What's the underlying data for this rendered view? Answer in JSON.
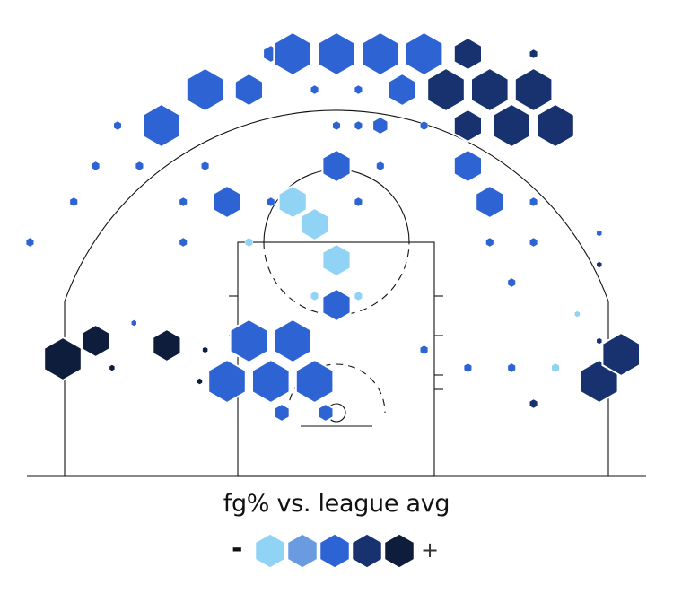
{
  "chart_data": {
    "type": "hexbin",
    "title": "",
    "legend": {
      "title": "fg% vs. league avg",
      "low_label": "-",
      "high_label": "+",
      "colors": [
        "#91d3f5",
        "#6a9be0",
        "#2e63d4",
        "#17326f",
        "#0e1d3c"
      ]
    },
    "color_levels": [
      "#91d3f5",
      "#6a9be0",
      "#2e63d4",
      "#17326f",
      "#0e1d3c"
    ],
    "size_scale_note": "hex size = shot volume (1 to 5)",
    "court_units": "feet",
    "bins": [
      {
        "x": -25.0,
        "y": 6.0,
        "size": 5,
        "level": 4
      },
      {
        "x": -22.0,
        "y": 8.0,
        "size": 4,
        "level": 4
      },
      {
        "x": -20.5,
        "y": 5.0,
        "size": 1,
        "level": 4
      },
      {
        "x": -18.5,
        "y": 10.0,
        "size": 1,
        "level": 2
      },
      {
        "x": -15.5,
        "y": 7.5,
        "size": 4,
        "level": 4
      },
      {
        "x": -12.5,
        "y": 3.5,
        "size": 1,
        "level": 4
      },
      {
        "x": -12.0,
        "y": 7.0,
        "size": 1,
        "level": 4
      },
      {
        "x": -10.0,
        "y": 3.5,
        "size": 5,
        "level": 2
      },
      {
        "x": -8.0,
        "y": 8.0,
        "size": 5,
        "level": 2
      },
      {
        "x": -6.0,
        "y": 3.5,
        "size": 5,
        "level": 2
      },
      {
        "x": -5.0,
        "y": 0.0,
        "size": 3,
        "level": 2
      },
      {
        "x": -4.0,
        "y": 8.0,
        "size": 5,
        "level": 2
      },
      {
        "x": -2.0,
        "y": 3.5,
        "size": 5,
        "level": 2
      },
      {
        "x": -1.0,
        "y": 0.0,
        "size": 3,
        "level": 2
      },
      {
        "x": 0.0,
        "y": 12.0,
        "size": 4,
        "level": 2
      },
      {
        "x": -2.0,
        "y": 21.0,
        "size": 4,
        "level": 0
      },
      {
        "x": 0.0,
        "y": 17.0,
        "size": 4,
        "level": 0
      },
      {
        "x": -2.0,
        "y": 13.0,
        "size": 2,
        "level": 0
      },
      {
        "x": 2.0,
        "y": 13.0,
        "size": 2,
        "level": 0
      },
      {
        "x": 8.0,
        "y": 7.0,
        "size": 2,
        "level": 2
      },
      {
        "x": 12.0,
        "y": 5.0,
        "size": 2,
        "level": 2
      },
      {
        "x": 16.0,
        "y": 5.0,
        "size": 2,
        "level": 2
      },
      {
        "x": 20.0,
        "y": 5.0,
        "size": 2,
        "level": 0
      },
      {
        "x": 18.0,
        "y": 1.0,
        "size": 2,
        "level": 3
      },
      {
        "x": 24.0,
        "y": 3.5,
        "size": 5,
        "level": 3
      },
      {
        "x": 26.0,
        "y": 6.5,
        "size": 5,
        "level": 3
      },
      {
        "x": 24.0,
        "y": 8.0,
        "size": 1,
        "level": 3
      },
      {
        "x": 22.0,
        "y": 11.0,
        "size": 1,
        "level": 0
      },
      {
        "x": 24.0,
        "y": 16.5,
        "size": 1,
        "level": 3
      },
      {
        "x": 24.0,
        "y": 20.0,
        "size": 1,
        "level": 2
      },
      {
        "x": 16.0,
        "y": 14.5,
        "size": 2,
        "level": 2
      },
      {
        "x": 14.0,
        "y": 19.0,
        "size": 2,
        "level": 2
      },
      {
        "x": 18.0,
        "y": 19.0,
        "size": 2,
        "level": 2
      },
      {
        "x": 14.0,
        "y": 23.5,
        "size": 4,
        "level": 2
      },
      {
        "x": 18.0,
        "y": 23.5,
        "size": 2,
        "level": 2
      },
      {
        "x": 12.0,
        "y": 27.5,
        "size": 4,
        "level": 2
      },
      {
        "x": 4.0,
        "y": 27.5,
        "size": 2,
        "level": 2
      },
      {
        "x": 0.0,
        "y": 27.5,
        "size": 4,
        "level": 2
      },
      {
        "x": -4.0,
        "y": 23.5,
        "size": 4,
        "level": 0
      },
      {
        "x": 2.0,
        "y": 23.5,
        "size": 2,
        "level": 2
      },
      {
        "x": -6.0,
        "y": 23.5,
        "size": 2,
        "level": 2
      },
      {
        "x": -10.0,
        "y": 23.5,
        "size": 4,
        "level": 2
      },
      {
        "x": -14.0,
        "y": 23.5,
        "size": 2,
        "level": 2
      },
      {
        "x": -8.0,
        "y": 19.0,
        "size": 2,
        "level": 0
      },
      {
        "x": -14.0,
        "y": 19.0,
        "size": 2,
        "level": 2
      },
      {
        "x": -28.0,
        "y": 19.0,
        "size": 2,
        "level": 2
      },
      {
        "x": -24.0,
        "y": 23.5,
        "size": 2,
        "level": 2
      },
      {
        "x": -22.0,
        "y": 27.5,
        "size": 2,
        "level": 2
      },
      {
        "x": -12.0,
        "y": 27.5,
        "size": 2,
        "level": 2
      },
      {
        "x": -18.0,
        "y": 27.5,
        "size": 2,
        "level": 2
      },
      {
        "x": -20.0,
        "y": 32.0,
        "size": 2,
        "level": 2
      },
      {
        "x": -16.0,
        "y": 32.0,
        "size": 5,
        "level": 2
      },
      {
        "x": -12.0,
        "y": 36.0,
        "size": 5,
        "level": 2
      },
      {
        "x": -8.0,
        "y": 36.0,
        "size": 4,
        "level": 2
      },
      {
        "x": -6.0,
        "y": 40.0,
        "size": 3,
        "level": 2
      },
      {
        "x": -2.0,
        "y": 36.0,
        "size": 2,
        "level": 2
      },
      {
        "x": -4.0,
        "y": 40.0,
        "size": 5,
        "level": 2
      },
      {
        "x": 0.0,
        "y": 40.0,
        "size": 5,
        "level": 2
      },
      {
        "x": 2.0,
        "y": 36.0,
        "size": 2,
        "level": 2
      },
      {
        "x": 4.0,
        "y": 40.0,
        "size": 5,
        "level": 2
      },
      {
        "x": 6.0,
        "y": 36.0,
        "size": 4,
        "level": 2
      },
      {
        "x": 2.0,
        "y": 32.0,
        "size": 2,
        "level": 2
      },
      {
        "x": 8.0,
        "y": 40.0,
        "size": 5,
        "level": 2
      },
      {
        "x": 10.0,
        "y": 36.0,
        "size": 5,
        "level": 3
      },
      {
        "x": 12.0,
        "y": 40.0,
        "size": 4,
        "level": 3
      },
      {
        "x": 14.0,
        "y": 36.0,
        "size": 5,
        "level": 3
      },
      {
        "x": 16.0,
        "y": 32.0,
        "size": 5,
        "level": 3
      },
      {
        "x": 18.0,
        "y": 36.0,
        "size": 5,
        "level": 3
      },
      {
        "x": 20.0,
        "y": 32.0,
        "size": 5,
        "level": 3
      },
      {
        "x": 18.0,
        "y": 40.0,
        "size": 2,
        "level": 3
      },
      {
        "x": 12.0,
        "y": 32.0,
        "size": 4,
        "level": 3
      },
      {
        "x": 8.0,
        "y": 32.0,
        "size": 2,
        "level": 2
      },
      {
        "x": 4.0,
        "y": 32.0,
        "size": 3,
        "level": 2
      },
      {
        "x": 0.0,
        "y": 32.0,
        "size": 2,
        "level": 2
      }
    ],
    "court_lines": true,
    "grid": false
  }
}
